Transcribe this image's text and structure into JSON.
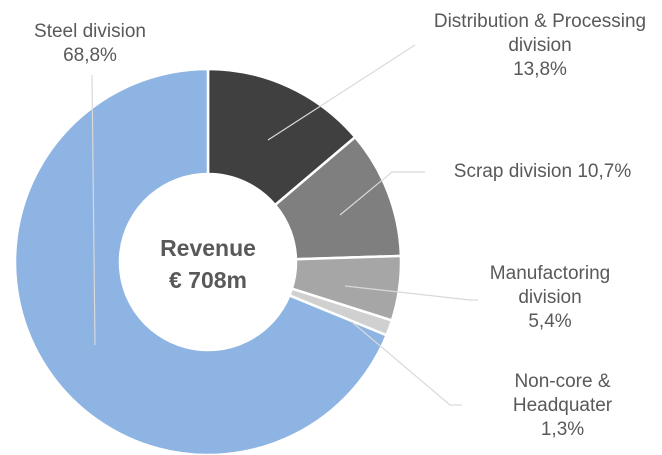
{
  "chart_data": {
    "type": "donut",
    "center_text": [
      "Revenue",
      "€ 708m"
    ],
    "categories": [
      "Distribution & Processing division",
      "Scrap division",
      "Manufactoring division",
      "Non-core & Headquater",
      "Steel division"
    ],
    "values": [
      13.8,
      10.7,
      5.4,
      1.3,
      68.8
    ],
    "value_labels": [
      "13,8%",
      "10,7%",
      "5,4%",
      "1,3%",
      "68,8%"
    ],
    "colors": [
      "#404040",
      "#7f7f7f",
      "#a6a6a6",
      "#d0d0d0",
      "#8eb4e3"
    ]
  }
}
